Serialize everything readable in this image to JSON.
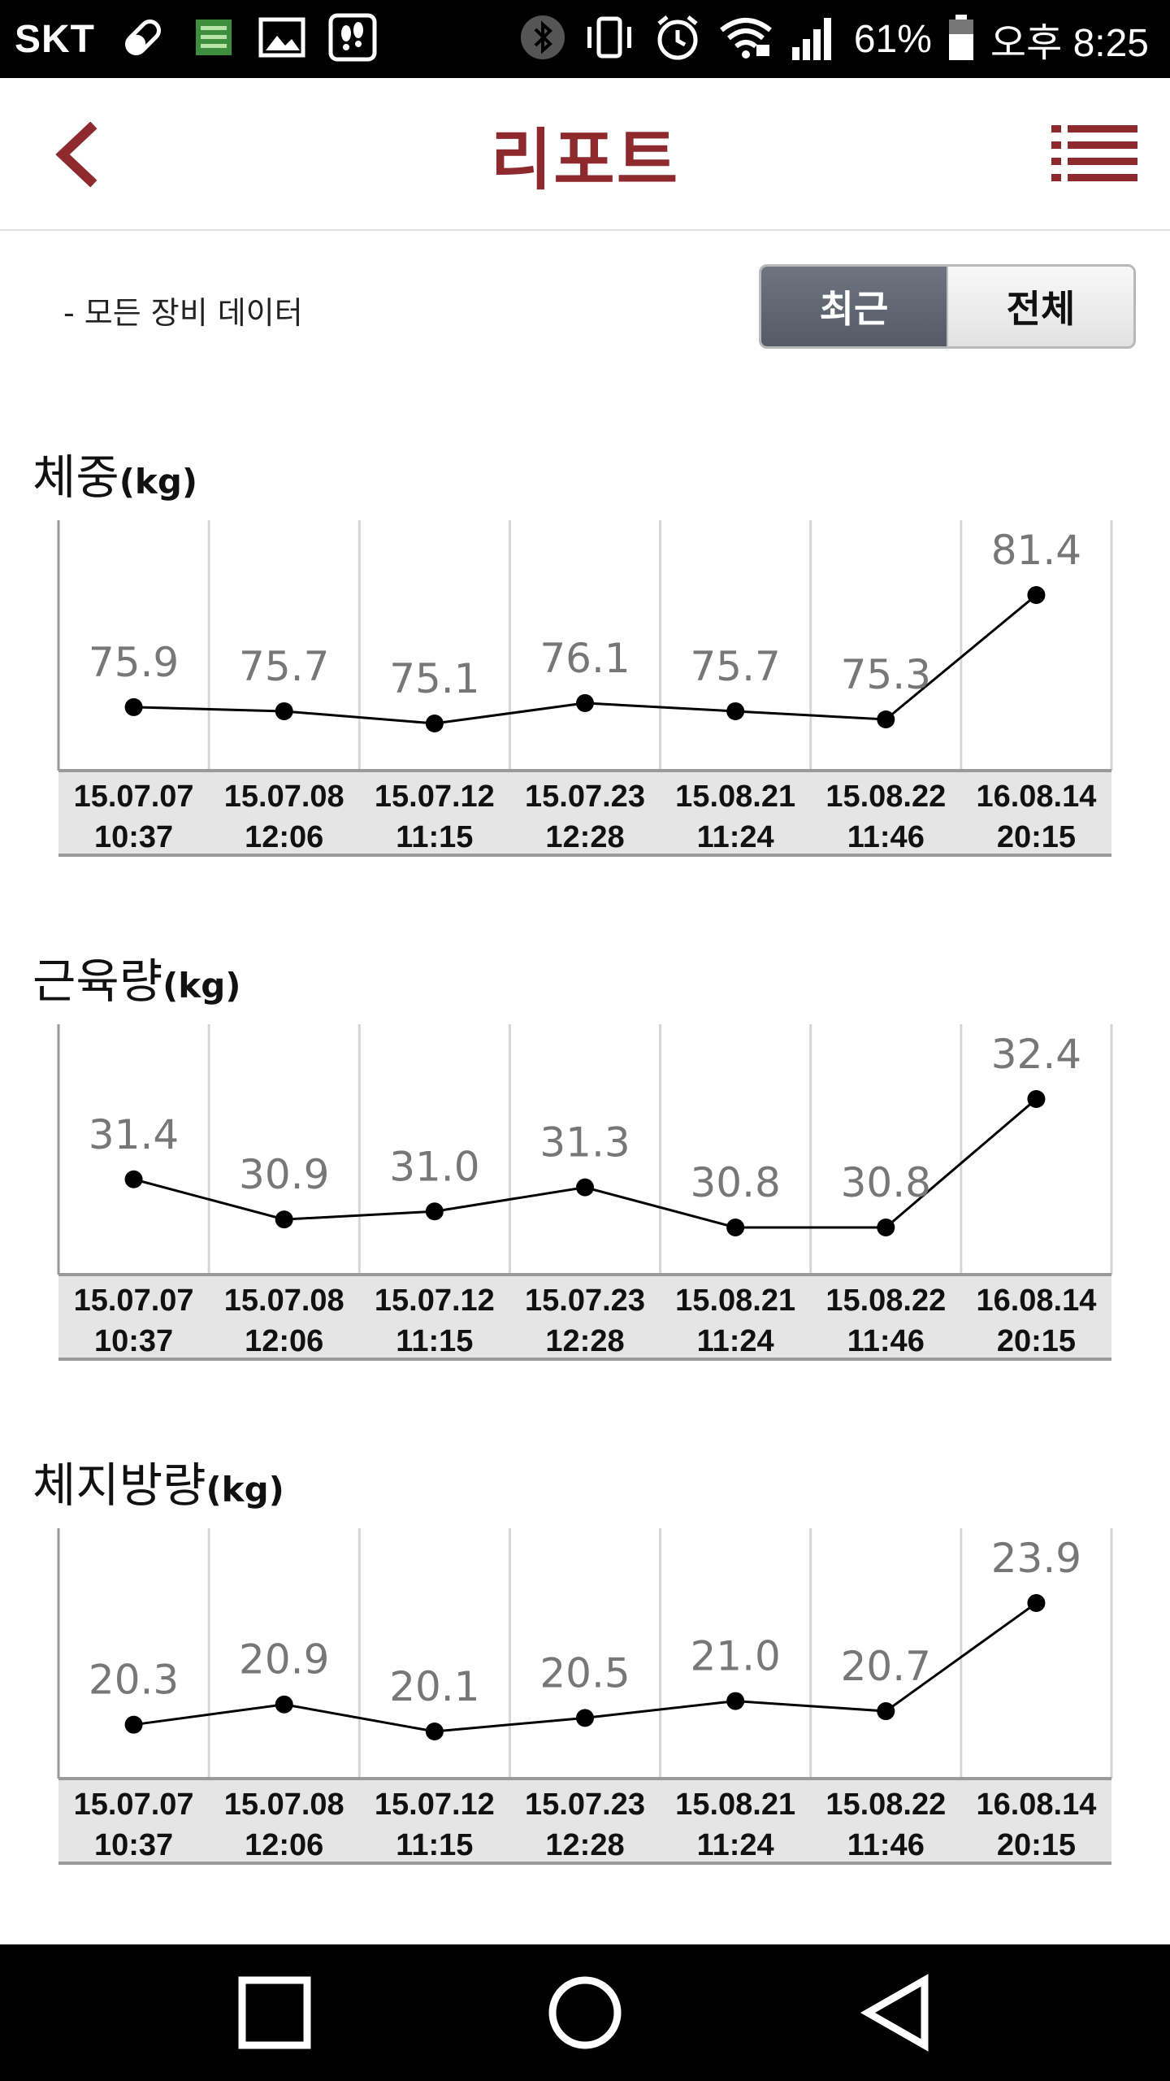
{
  "status_bar": {
    "carrier": "SKT",
    "battery": "61%",
    "time": "오후 8:25"
  },
  "header": {
    "title": "리포트",
    "back_icon": "chevron-left-icon",
    "menu_icon": "list-menu-icon",
    "accent_color": "#8e2a2e"
  },
  "filter": {
    "note": "- 모든 장비 데이터",
    "options": [
      "최근",
      "전체"
    ],
    "selected": "최근"
  },
  "dates": [
    [
      "15.07.07",
      "10:37"
    ],
    [
      "15.07.08",
      "12:06"
    ],
    [
      "15.07.12",
      "11:15"
    ],
    [
      "15.07.23",
      "12:28"
    ],
    [
      "15.08.21",
      "11:24"
    ],
    [
      "15.08.22",
      "11:46"
    ],
    [
      "16.08.14",
      "20:15"
    ]
  ],
  "chart_data": [
    {
      "type": "line",
      "title": "체중",
      "unit": "(kg)",
      "categories": [
        "15.07.07 10:37",
        "15.07.08 12:06",
        "15.07.12 11:15",
        "15.07.23 12:28",
        "15.08.21 11:24",
        "15.08.22 11:46",
        "16.08.14 20:15"
      ],
      "values": [
        75.9,
        75.7,
        75.1,
        76.1,
        75.7,
        75.3,
        81.4
      ],
      "grid": true
    },
    {
      "type": "line",
      "title": "근육량",
      "unit": "(kg)",
      "categories": [
        "15.07.07 10:37",
        "15.07.08 12:06",
        "15.07.12 11:15",
        "15.07.23 12:28",
        "15.08.21 11:24",
        "15.08.22 11:46",
        "16.08.14 20:15"
      ],
      "values": [
        31.4,
        30.9,
        31.0,
        31.3,
        30.8,
        30.8,
        32.4
      ],
      "grid": true
    },
    {
      "type": "line",
      "title": "체지방량",
      "unit": "(kg)",
      "categories": [
        "15.07.07 10:37",
        "15.07.08 12:06",
        "15.07.12 11:15",
        "15.07.23 12:28",
        "15.08.21 11:24",
        "15.08.22 11:46",
        "16.08.14 20:15"
      ],
      "values": [
        20.3,
        20.9,
        20.1,
        20.5,
        21.0,
        20.7,
        23.9
      ],
      "grid": true
    }
  ],
  "nav": {
    "recents_icon": "square-recents-icon",
    "home_icon": "circle-home-icon",
    "back_icon": "triangle-back-icon"
  }
}
